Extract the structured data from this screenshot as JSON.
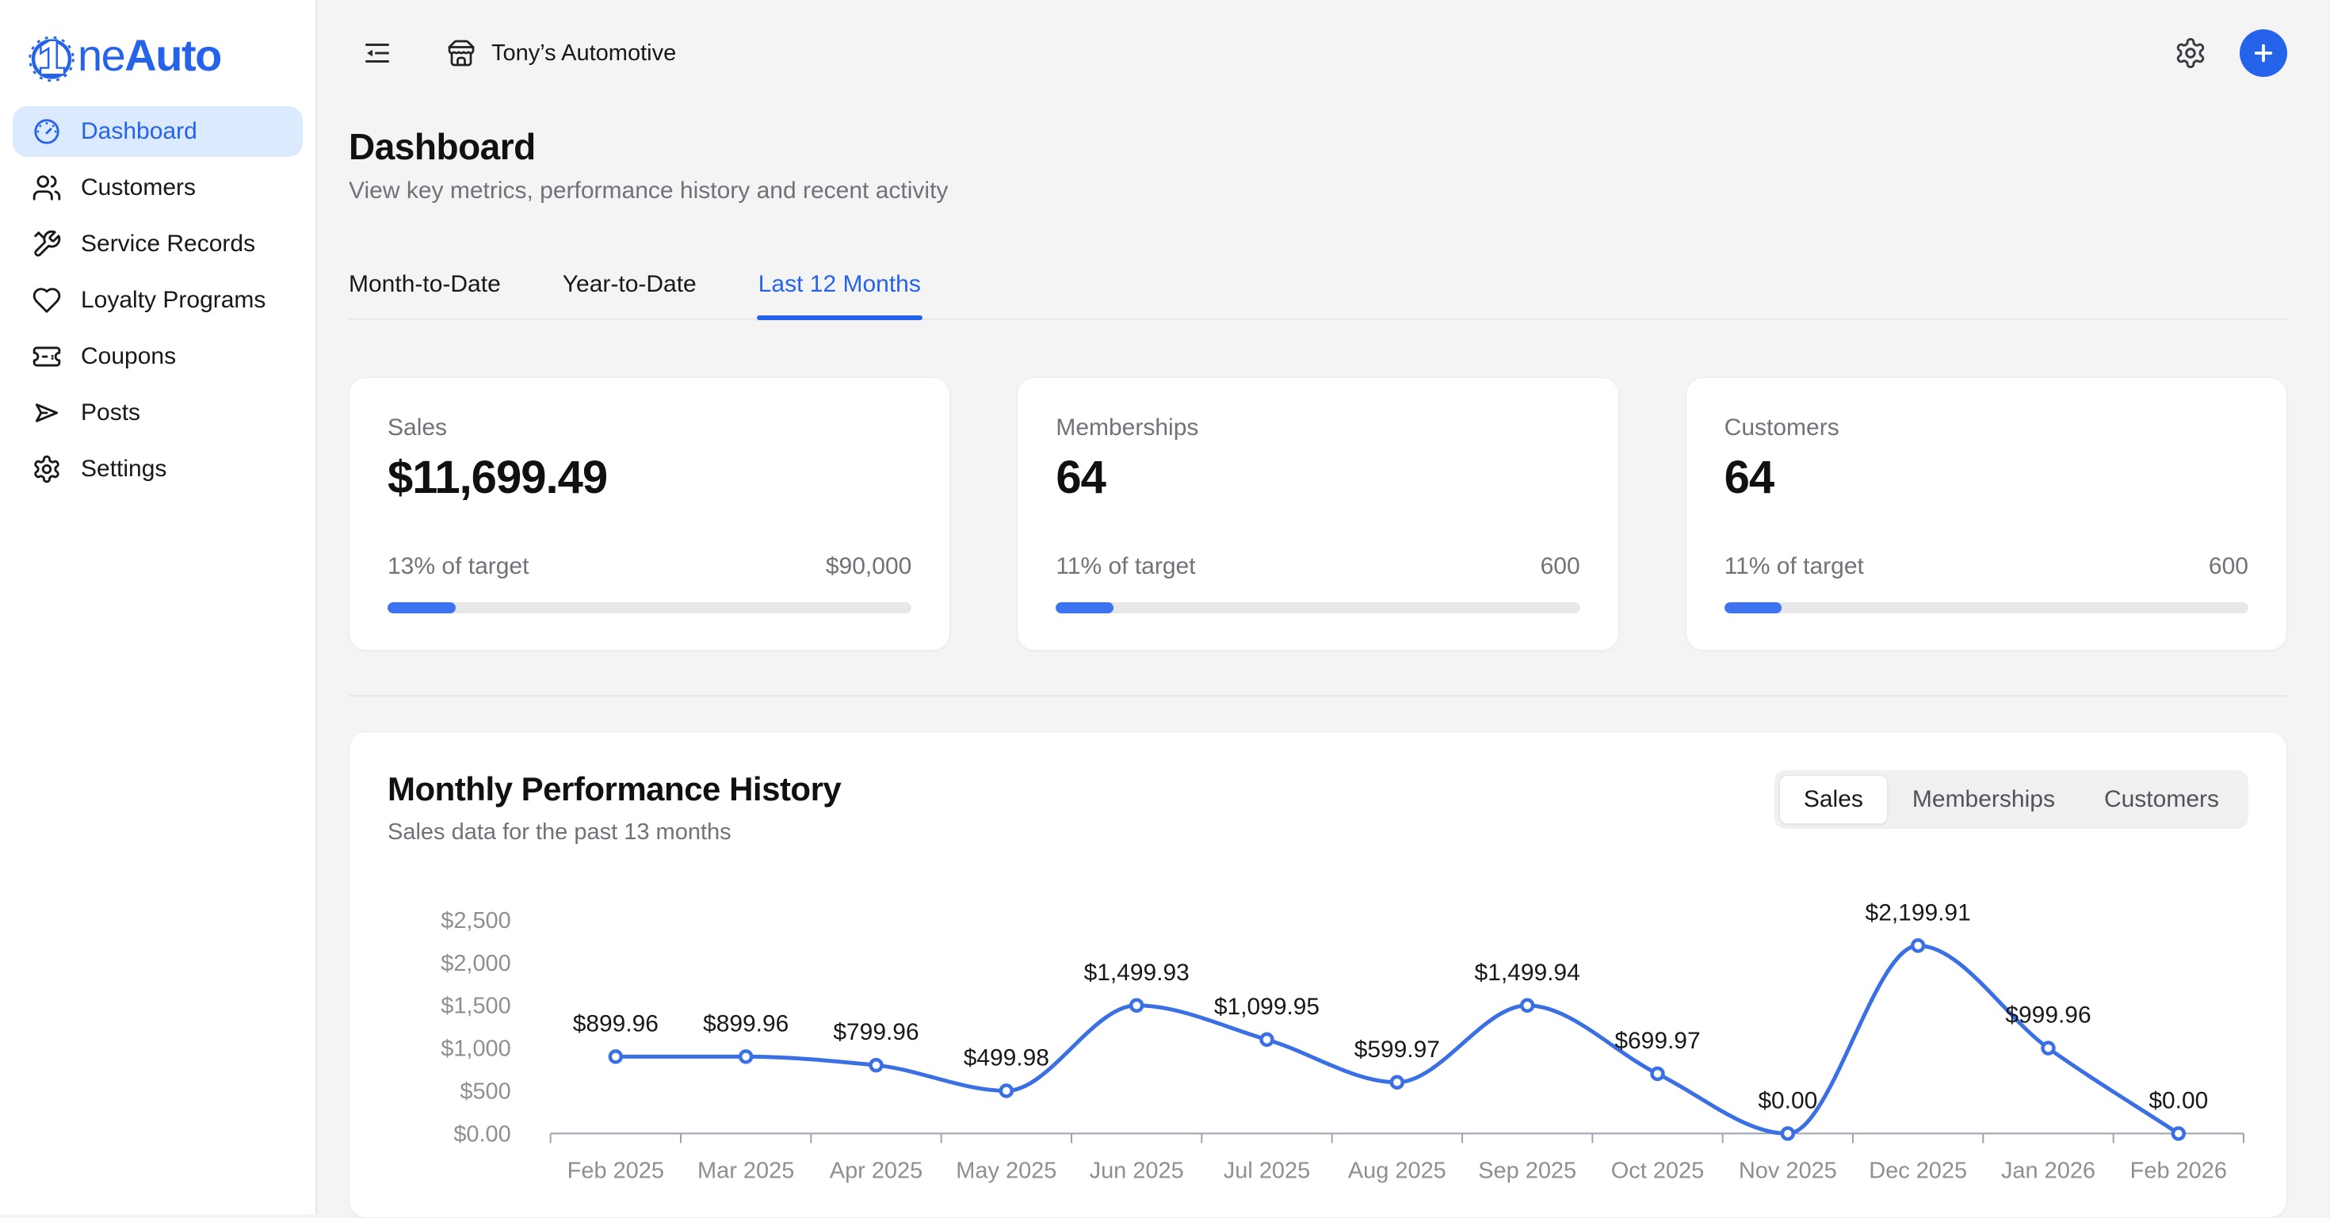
{
  "brand": {
    "logo_mark_char": "1",
    "name_regular": "ne",
    "name_bold": "Auto"
  },
  "colors": {
    "accent": "#2563eb",
    "chart_line": "#3b6fe4",
    "progress_fill": "#3d73ef",
    "active_nav_bg": "#dbeafe",
    "page_bg": "#f4f4f5"
  },
  "sidebar": {
    "items": [
      {
        "label": "Dashboard",
        "icon": "gauge-icon",
        "active": true
      },
      {
        "label": "Customers",
        "icon": "users-icon",
        "active": false
      },
      {
        "label": "Service Records",
        "icon": "tools-icon",
        "active": false
      },
      {
        "label": "Loyalty Programs",
        "icon": "heart-icon",
        "active": false
      },
      {
        "label": "Coupons",
        "icon": "ticket-icon",
        "active": false
      },
      {
        "label": "Posts",
        "icon": "send-icon",
        "active": false
      },
      {
        "label": "Settings",
        "icon": "gear-icon",
        "active": false
      }
    ]
  },
  "topbar": {
    "store_name": "Tony’s Automotive",
    "icons": [
      "sidebar-collapse-icon",
      "storefront-icon",
      "gear-icon",
      "plus-icon"
    ]
  },
  "page": {
    "title": "Dashboard",
    "subtitle": "View key metrics, performance history and recent activity"
  },
  "period_tabs": {
    "items": [
      {
        "label": "Month-to-Date",
        "active": false
      },
      {
        "label": "Year-to-Date",
        "active": false
      },
      {
        "label": "Last 12 Months",
        "active": true
      }
    ]
  },
  "metric_cards": [
    {
      "label": "Sales",
      "value": "$11,699.49",
      "target_pct_text": "13% of target",
      "target_total": "$90,000",
      "progress_pct": 13
    },
    {
      "label": "Memberships",
      "value": "64",
      "target_pct_text": "11% of target",
      "target_total": "600",
      "progress_pct": 11
    },
    {
      "label": "Customers",
      "value": "64",
      "target_pct_text": "11% of target",
      "target_total": "600",
      "progress_pct": 11
    }
  ],
  "chart_section": {
    "title": "Monthly Performance History",
    "subtitle": "Sales data for the past 13 months",
    "toggle": {
      "items": [
        {
          "label": "Sales",
          "active": true
        },
        {
          "label": "Memberships",
          "active": false
        },
        {
          "label": "Customers",
          "active": false
        }
      ]
    }
  },
  "chart_data": {
    "type": "line",
    "title": "Monthly Performance History",
    "categories": [
      "Feb 2025",
      "Mar 2025",
      "Apr 2025",
      "May 2025",
      "Jun 2025",
      "Jul 2025",
      "Aug 2025",
      "Sep 2025",
      "Oct 2025",
      "Nov 2025",
      "Dec 2025",
      "Jan 2026",
      "Feb 2026"
    ],
    "values": [
      899.96,
      899.96,
      799.96,
      499.98,
      1499.93,
      1099.95,
      599.97,
      1499.94,
      699.97,
      0,
      2199.91,
      999.96,
      0
    ],
    "point_labels": [
      "$899.96",
      "$899.96",
      "$799.96",
      "$499.98",
      "$1,499.93",
      "$1,099.95",
      "$599.97",
      "$1,499.94",
      "$699.97",
      "$0.00",
      "$2,199.91",
      "$999.96",
      "$0.00"
    ],
    "xlabel": "",
    "ylabel": "",
    "ylim": [
      0,
      2500
    ],
    "yticks": {
      "values": [
        0,
        500,
        1000,
        1500,
        2000,
        2500
      ],
      "labels": [
        "$0.00",
        "$500",
        "$1,000",
        "$1,500",
        "$2,000",
        "$2,500"
      ]
    },
    "grid": false,
    "legend_position": "none",
    "smooth": true,
    "line_color": "#3b6fe4",
    "marker": "open-circle"
  }
}
